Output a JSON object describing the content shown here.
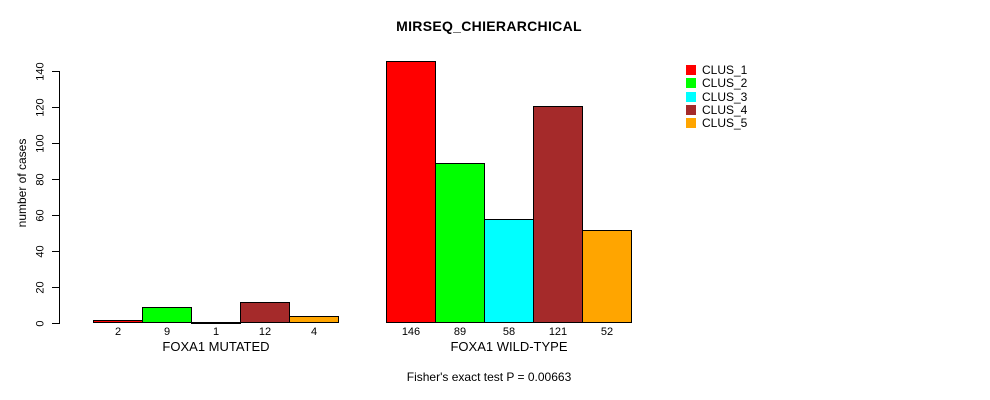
{
  "chart_data": {
    "type": "bar",
    "title": "MIRSEQ_CHIERARCHICAL",
    "ylabel": "number of cases",
    "xlabel": "",
    "caption": "Fisher's exact test P = 0.00663",
    "groups": [
      {
        "label": "FOXA1 MUTATED",
        "values": [
          2,
          9,
          1,
          12,
          4
        ]
      },
      {
        "label": "FOXA1 WILD-TYPE",
        "values": [
          146,
          89,
          58,
          121,
          52
        ]
      }
    ],
    "series": [
      {
        "name": "CLUS_1",
        "color": "#ff0000"
      },
      {
        "name": "CLUS_2",
        "color": "#00ff00"
      },
      {
        "name": "CLUS_3",
        "color": "#00ffff"
      },
      {
        "name": "CLUS_4",
        "color": "#a52a2a"
      },
      {
        "name": "CLUS_5",
        "color": "#ffa500"
      }
    ],
    "yticks": [
      0,
      20,
      40,
      60,
      80,
      100,
      120,
      140
    ],
    "ylim": [
      0,
      140
    ],
    "grid": false,
    "legend_position": "top-right",
    "bar_border_color": "#000000",
    "background": "#ffffff"
  }
}
